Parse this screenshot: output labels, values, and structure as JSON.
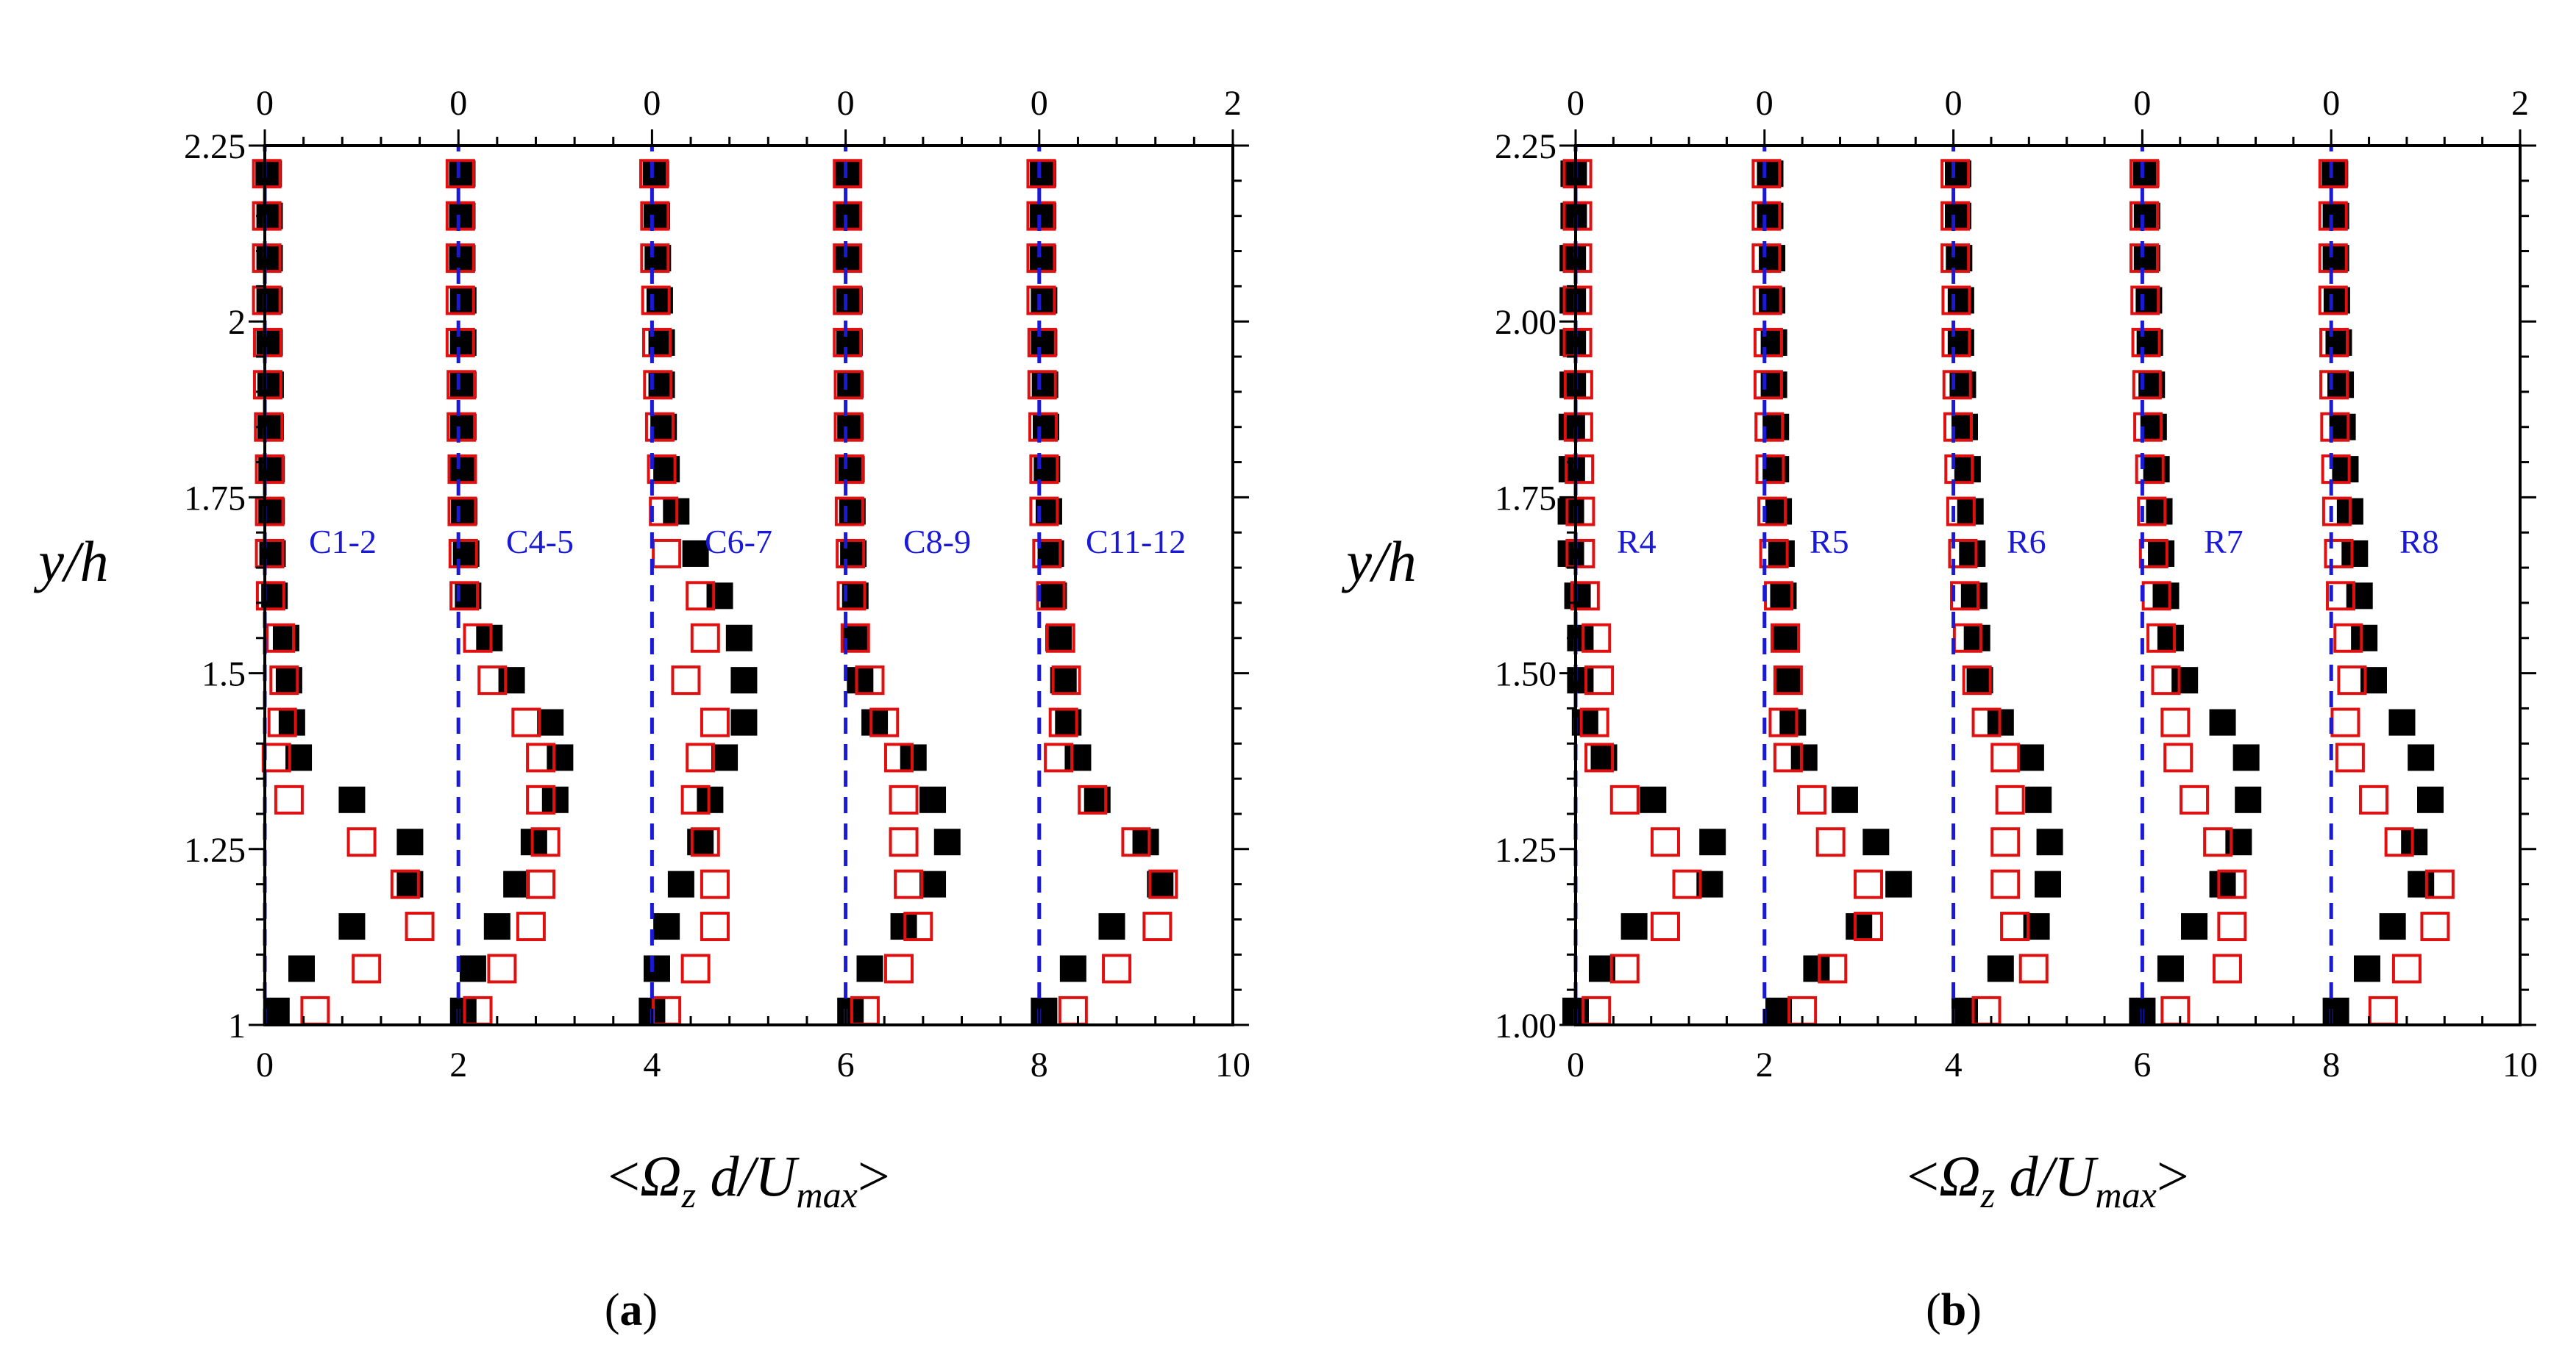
{
  "colors": {
    "axis": "#000000",
    "filled_marker": "#000000",
    "open_marker": "#e01010",
    "reference_line": "#1a1ad6",
    "annotation": "#1a1ad6"
  },
  "chart_data": [
    {
      "type": "scatter",
      "panel_label": {
        "open": "(",
        "letter": "a",
        "close": ")"
      },
      "ylabel": "y/h",
      "xlabel": {
        "prefix": "<",
        "omega": "Ω",
        "sub_z": "z",
        "mid": " d/U",
        "sub_max": "max",
        "suffix": ">"
      },
      "xlim": [
        0,
        10
      ],
      "ylim": [
        1,
        2.25
      ],
      "x_ticks": [
        0,
        2,
        4,
        6,
        8,
        10
      ],
      "x_tick_labels": [
        "0",
        "2",
        "4",
        "6",
        "8",
        "10"
      ],
      "top_tick_values": [
        0,
        2,
        4,
        6,
        8,
        10
      ],
      "top_tick_labels": [
        "0",
        "0",
        "0",
        "0",
        "0",
        "2"
      ],
      "y_ticks": [
        1,
        1.25,
        1.5,
        1.75,
        2,
        2.25
      ],
      "y_tick_labels": [
        "1",
        "1.25",
        "1.5",
        "1.75",
        "2",
        "2.25"
      ],
      "y": [
        1.02,
        1.08,
        1.14,
        1.2,
        1.26,
        1.32,
        1.38,
        1.43,
        1.49,
        1.55,
        1.61,
        1.67,
        1.73,
        1.79,
        1.85,
        1.91,
        1.97,
        2.03,
        2.09,
        2.15,
        2.21
      ],
      "profiles": [
        {
          "label": "C1-2",
          "offset": 0,
          "filled": [
            0.12,
            0.38,
            0.9,
            1.5,
            1.5,
            0.9,
            0.35,
            0.28,
            0.25,
            0.22,
            0.1,
            0.08,
            0.07,
            0.07,
            0.06,
            0.06,
            0.05,
            0.05,
            0.05,
            0.05,
            0.04
          ],
          "open": [
            0.52,
            1.05,
            1.6,
            1.45,
            1.0,
            0.25,
            0.12,
            0.18,
            0.2,
            0.16,
            0.06,
            0.05,
            0.05,
            0.05,
            0.04,
            0.03,
            0.03,
            0.02,
            0.02,
            0.02,
            0.02
          ]
        },
        {
          "label": "C4-5",
          "offset": 2,
          "filled": [
            0.05,
            0.15,
            0.4,
            0.6,
            0.78,
            1.0,
            1.05,
            0.95,
            0.55,
            0.32,
            0.1,
            0.08,
            0.06,
            0.05,
            0.05,
            0.05,
            0.05,
            0.05,
            0.04,
            0.04,
            0.04
          ],
          "open": [
            0.2,
            0.45,
            0.75,
            0.85,
            0.9,
            0.85,
            0.85,
            0.7,
            0.35,
            0.2,
            0.06,
            0.05,
            0.04,
            0.04,
            0.03,
            0.03,
            0.02,
            0.02,
            0.02,
            0.02,
            0.02
          ]
        },
        {
          "label": "C6-7",
          "offset": 4,
          "filled": [
            0.0,
            0.05,
            0.15,
            0.3,
            0.5,
            0.6,
            0.75,
            0.95,
            0.95,
            0.9,
            0.7,
            0.45,
            0.25,
            0.15,
            0.12,
            0.1,
            0.1,
            0.08,
            0.06,
            0.05,
            0.04
          ],
          "open": [
            0.15,
            0.45,
            0.65,
            0.65,
            0.55,
            0.45,
            0.5,
            0.65,
            0.35,
            0.55,
            0.5,
            0.15,
            0.12,
            0.1,
            0.08,
            0.06,
            0.05,
            0.04,
            0.03,
            0.03,
            0.02
          ]
        },
        {
          "label": "C8-9",
          "offset": 6,
          "filled": [
            0.05,
            0.25,
            0.6,
            0.9,
            1.05,
            0.9,
            0.7,
            0.3,
            0.15,
            0.1,
            0.1,
            0.08,
            0.07,
            0.06,
            0.05,
            0.05,
            0.04,
            0.04,
            0.03,
            0.03,
            0.03
          ],
          "open": [
            0.2,
            0.55,
            0.75,
            0.65,
            0.6,
            0.6,
            0.55,
            0.4,
            0.25,
            0.1,
            0.06,
            0.05,
            0.04,
            0.04,
            0.03,
            0.03,
            0.02,
            0.02,
            0.02,
            0.02,
            0.02
          ]
        },
        {
          "label": "C11-12",
          "offset": 8,
          "filled": [
            0.05,
            0.35,
            0.75,
            1.25,
            1.1,
            0.6,
            0.4,
            0.3,
            0.25,
            0.2,
            0.15,
            0.12,
            0.1,
            0.08,
            0.07,
            0.06,
            0.05,
            0.05,
            0.04,
            0.04,
            0.04
          ],
          "open": [
            0.35,
            0.8,
            1.22,
            1.28,
            1.0,
            0.55,
            0.2,
            0.25,
            0.28,
            0.22,
            0.12,
            0.08,
            0.05,
            0.05,
            0.04,
            0.03,
            0.03,
            0.02,
            0.02,
            0.02,
            0.02
          ]
        }
      ]
    },
    {
      "type": "scatter",
      "panel_label": {
        "open": "(",
        "letter": "b",
        "close": ")"
      },
      "ylabel": "y/h",
      "xlabel": {
        "prefix": "<",
        "omega": "Ω",
        "sub_z": "z",
        "mid": " d/U",
        "sub_max": "max",
        "suffix": ">"
      },
      "xlim": [
        0,
        10
      ],
      "ylim": [
        1,
        2.25
      ],
      "x_ticks": [
        0,
        2,
        4,
        6,
        8,
        10
      ],
      "x_tick_labels": [
        "0",
        "2",
        "4",
        "6",
        "8",
        "10"
      ],
      "top_tick_values": [
        0,
        2,
        4,
        6,
        8,
        10
      ],
      "top_tick_labels": [
        "0",
        "0",
        "0",
        "0",
        "0",
        "2"
      ],
      "y_ticks": [
        1,
        1.25,
        1.5,
        1.75,
        2,
        2.25
      ],
      "y_tick_labels": [
        "1.00",
        "1.25",
        "1.50",
        "1.75",
        "2.00",
        "2.25"
      ],
      "y": [
        1.02,
        1.08,
        1.14,
        1.2,
        1.26,
        1.32,
        1.38,
        1.43,
        1.49,
        1.55,
        1.61,
        1.67,
        1.73,
        1.79,
        1.85,
        1.91,
        1.97,
        2.03,
        2.09,
        2.15,
        2.21
      ],
      "profiles": [
        {
          "label": "R4",
          "offset": 0,
          "filled": [
            0.0,
            0.28,
            0.62,
            1.42,
            1.45,
            0.82,
            0.3,
            0.1,
            0.05,
            0.05,
            0.02,
            -0.05,
            -0.05,
            -0.04,
            -0.04,
            -0.03,
            -0.03,
            -0.03,
            -0.03,
            -0.02,
            -0.02
          ],
          "open": [
            0.22,
            0.52,
            0.95,
            1.18,
            0.95,
            0.52,
            0.25,
            0.2,
            0.25,
            0.22,
            0.1,
            0.05,
            0.05,
            0.04,
            0.03,
            0.03,
            0.02,
            0.02,
            0.02,
            0.02,
            0.02
          ]
        },
        {
          "label": "R5",
          "offset": 2,
          "filled": [
            0.15,
            0.55,
            1.0,
            1.42,
            1.18,
            0.85,
            0.42,
            0.3,
            0.25,
            0.22,
            0.2,
            0.18,
            0.15,
            0.12,
            0.12,
            0.1,
            0.1,
            0.08,
            0.08,
            0.06,
            0.06
          ],
          "open": [
            0.4,
            0.72,
            1.1,
            1.1,
            0.7,
            0.5,
            0.25,
            0.2,
            0.25,
            0.22,
            0.15,
            0.1,
            0.08,
            0.06,
            0.05,
            0.04,
            0.04,
            0.03,
            0.02,
            0.02,
            0.02
          ]
        },
        {
          "label": "R6",
          "offset": 4,
          "filled": [
            0.12,
            0.5,
            0.88,
            1.0,
            1.02,
            0.9,
            0.82,
            0.5,
            0.28,
            0.25,
            0.22,
            0.2,
            0.18,
            0.15,
            0.12,
            0.1,
            0.08,
            0.08,
            0.06,
            0.05,
            0.05
          ],
          "open": [
            0.35,
            0.85,
            0.65,
            0.55,
            0.55,
            0.6,
            0.55,
            0.35,
            0.25,
            0.15,
            0.12,
            0.1,
            0.08,
            0.06,
            0.05,
            0.04,
            0.03,
            0.03,
            0.02,
            0.02,
            0.02
          ]
        },
        {
          "label": "R7",
          "offset": 6,
          "filled": [
            0.0,
            0.3,
            0.55,
            0.85,
            1.02,
            1.12,
            1.1,
            0.85,
            0.45,
            0.3,
            0.25,
            0.2,
            0.18,
            0.15,
            0.12,
            0.1,
            0.08,
            0.07,
            0.05,
            0.05,
            0.04
          ],
          "open": [
            0.35,
            0.9,
            0.95,
            0.95,
            0.8,
            0.55,
            0.38,
            0.35,
            0.25,
            0.2,
            0.15,
            0.12,
            0.1,
            0.08,
            0.06,
            0.05,
            0.04,
            0.03,
            0.02,
            0.02,
            0.02
          ]
        },
        {
          "label": "R8",
          "offset": 8,
          "filled": [
            0.05,
            0.38,
            0.65,
            0.95,
            0.88,
            1.05,
            0.95,
            0.75,
            0.45,
            0.35,
            0.3,
            0.25,
            0.2,
            0.15,
            0.12,
            0.1,
            0.08,
            0.06,
            0.05,
            0.05,
            0.04
          ],
          "open": [
            0.55,
            0.8,
            1.1,
            1.15,
            0.72,
            0.45,
            0.2,
            0.15,
            0.22,
            0.18,
            0.1,
            0.08,
            0.06,
            0.05,
            0.04,
            0.03,
            0.03,
            0.02,
            0.02,
            0.02,
            0.02
          ]
        }
      ]
    }
  ]
}
